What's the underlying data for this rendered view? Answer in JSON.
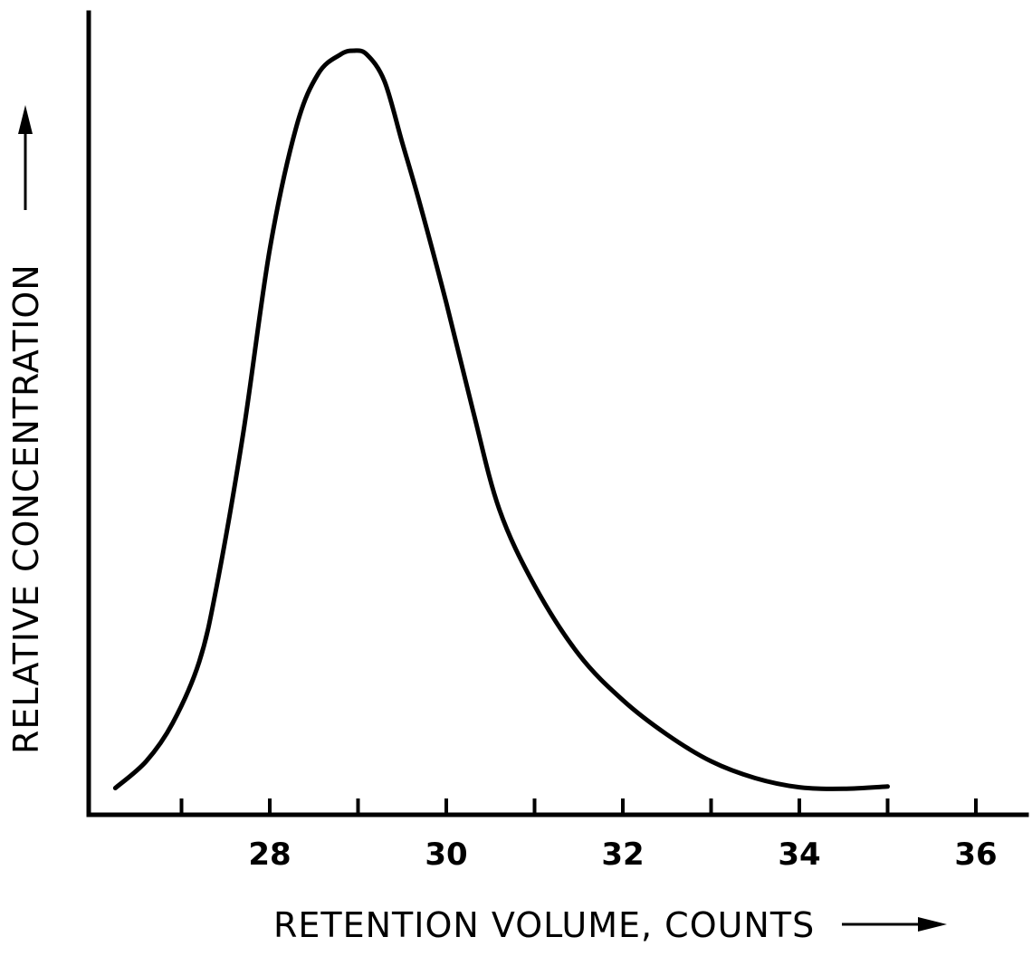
{
  "chart_data": {
    "type": "line",
    "title": "",
    "xlabel": "RETENTION VOLUME, COUNTS",
    "ylabel": "RELATIVE CONCENTRATION",
    "xlim": [
      26,
      36.5
    ],
    "ylim": [
      0,
      1
    ],
    "x_ticks": [
      27,
      28,
      29,
      30,
      31,
      32,
      33,
      34,
      35,
      36
    ],
    "x_tick_labels": [
      {
        "value": 28,
        "label": "28"
      },
      {
        "value": 30,
        "label": "30"
      },
      {
        "value": 32,
        "label": "32"
      },
      {
        "value": 34,
        "label": "34"
      },
      {
        "value": 36,
        "label": "36"
      }
    ],
    "grid": false,
    "legend": "none",
    "line_color": "#000000",
    "series": [
      {
        "x": [
          26.25,
          26.6,
          26.9,
          27.2,
          27.4,
          27.7,
          28.0,
          28.3,
          28.55,
          28.8,
          28.95,
          29.1,
          29.3,
          29.5,
          29.7,
          30.0,
          30.3,
          30.6,
          31.0,
          31.5,
          32.0,
          32.5,
          33.0,
          33.5,
          34.0,
          34.5,
          35.0
        ],
        "y": [
          0.035,
          0.07,
          0.12,
          0.2,
          0.3,
          0.5,
          0.74,
          0.9,
          0.97,
          0.995,
          1.0,
          0.995,
          0.96,
          0.88,
          0.8,
          0.67,
          0.53,
          0.4,
          0.3,
          0.21,
          0.15,
          0.105,
          0.07,
          0.048,
          0.036,
          0.034,
          0.037
        ]
      }
    ]
  }
}
